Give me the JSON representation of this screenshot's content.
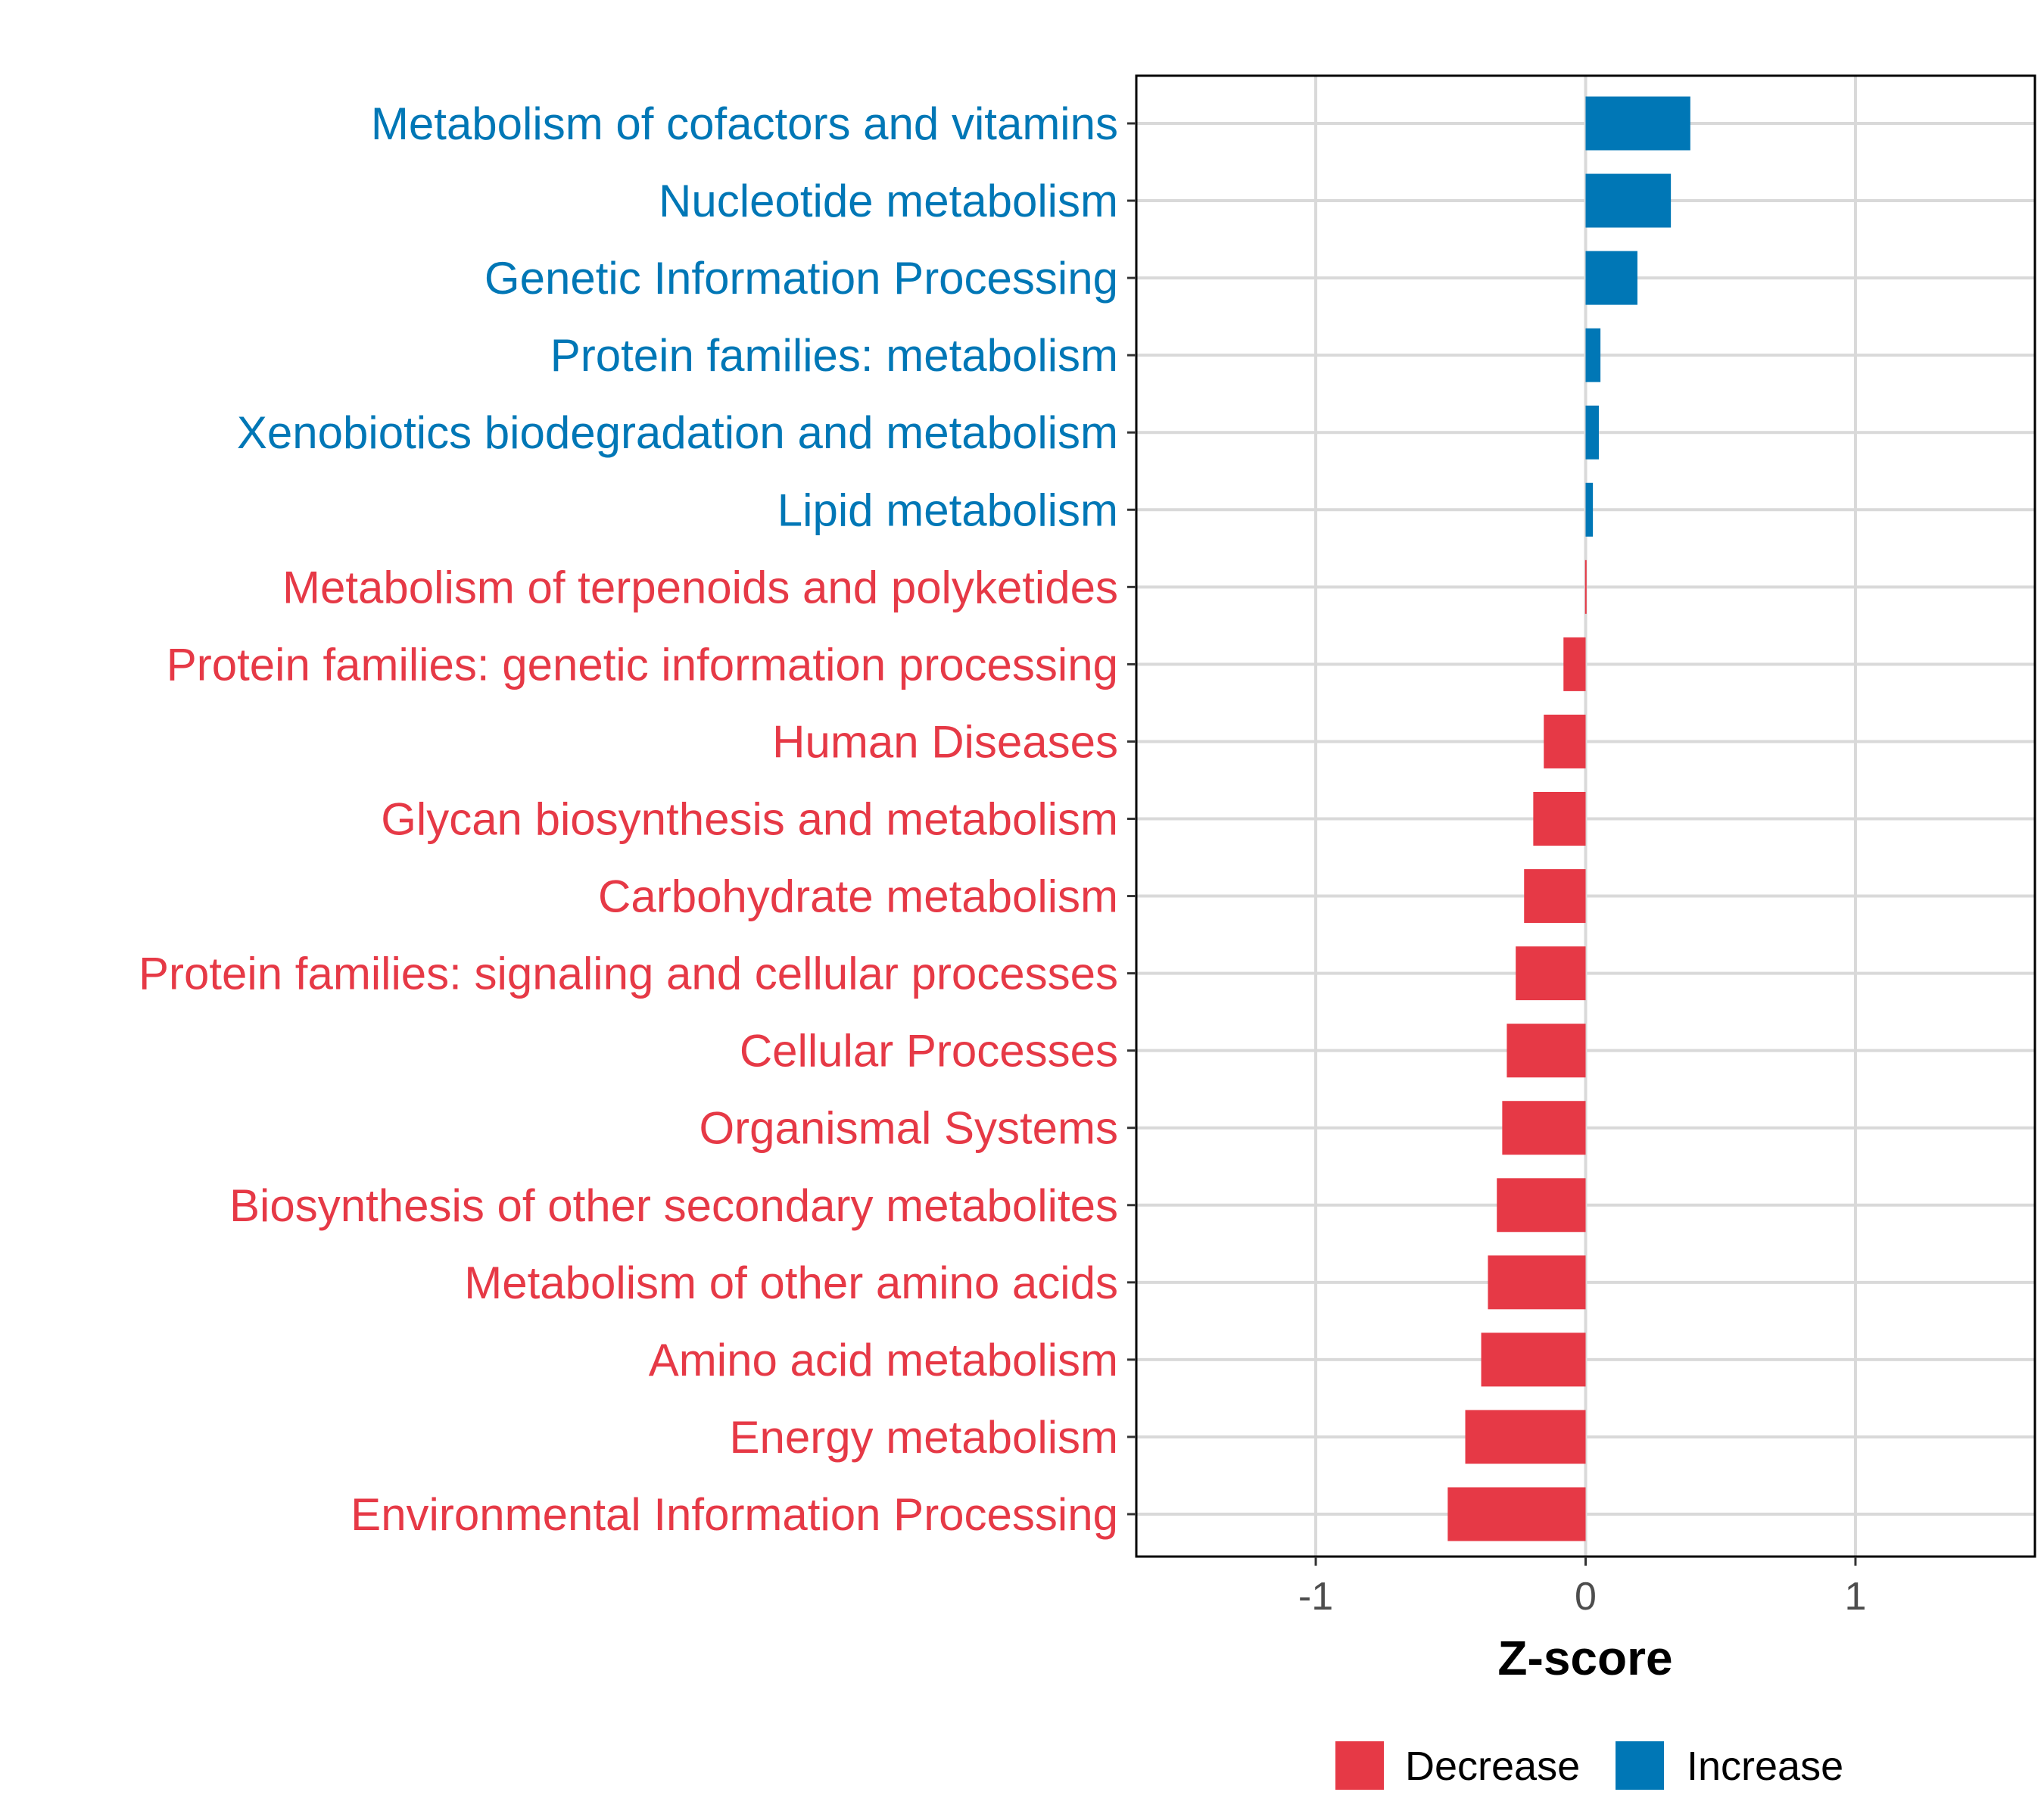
{
  "chart_data": {
    "type": "bar",
    "orientation": "horizontal",
    "title": "",
    "xlabel": "Z-score",
    "ylabel": "",
    "xlim": [
      -1.665,
      1.665
    ],
    "xticks": [
      -1,
      0,
      1
    ],
    "xtick_labels": [
      "-1",
      "0",
      "1"
    ],
    "grid": true,
    "legend_position": "bottom",
    "colors": {
      "Decrease": "#E63946",
      "Increase": "#0077B6"
    },
    "legend": [
      {
        "label": "Decrease",
        "color": "#E63946"
      },
      {
        "label": "Increase",
        "color": "#0077B6"
      }
    ],
    "categories": [
      "Metabolism of cofactors and vitamins",
      "Nucleotide metabolism",
      "Genetic Information Processing",
      "Protein families: metabolism",
      "Xenobiotics biodegradation and metabolism",
      "Lipid metabolism",
      "Metabolism of terpenoids and polyketides",
      "Protein families: genetic information processing",
      "Human Diseases",
      "Glycan biosynthesis and metabolism",
      "Carbohydrate metabolism",
      "Protein families: signaling and cellular processes",
      "Cellular Processes",
      "Organismal Systems",
      "Biosynthesis of other secondary metabolites",
      "Metabolism of other amino acids",
      "Amino acid metabolism",
      "Energy metabolism",
      "Environmental Information Processing"
    ],
    "values": [
      0.388,
      0.316,
      0.192,
      0.055,
      0.049,
      0.027,
      -0.002,
      -0.082,
      -0.155,
      -0.194,
      -0.228,
      -0.259,
      -0.292,
      -0.309,
      -0.329,
      -0.362,
      -0.387,
      -0.446,
      -0.511
    ],
    "groups": [
      "Increase",
      "Increase",
      "Increase",
      "Increase",
      "Increase",
      "Increase",
      "Decrease",
      "Decrease",
      "Decrease",
      "Decrease",
      "Decrease",
      "Decrease",
      "Decrease",
      "Decrease",
      "Decrease",
      "Decrease",
      "Decrease",
      "Decrease",
      "Decrease"
    ]
  }
}
